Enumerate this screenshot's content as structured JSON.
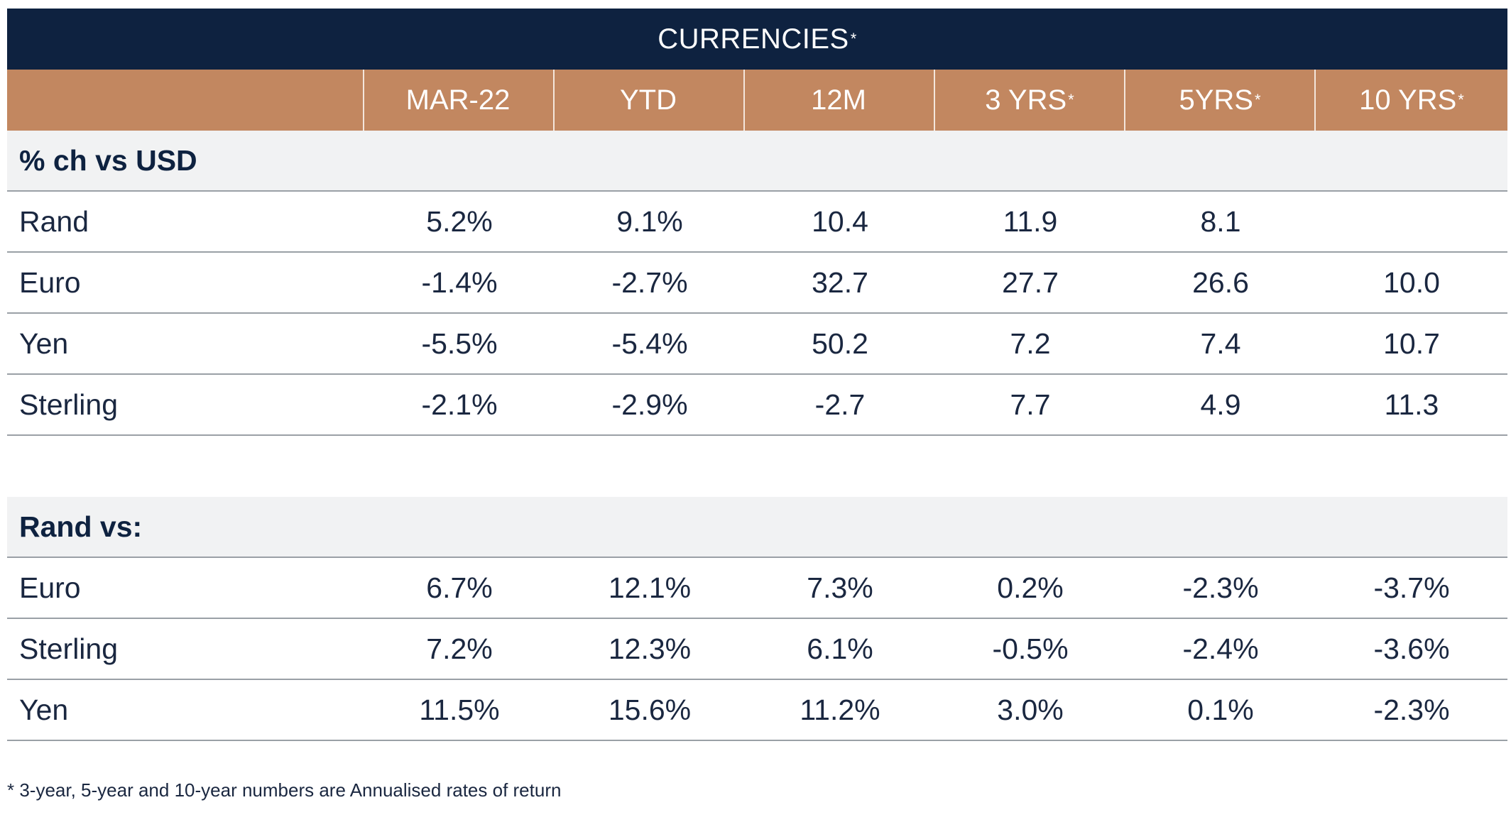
{
  "chart_data": {
    "type": "table",
    "title": "CURRENCIES",
    "title_marker": "*",
    "columns": [
      {
        "label": "MAR-22",
        "marker": ""
      },
      {
        "label": "YTD",
        "marker": ""
      },
      {
        "label": "12M",
        "marker": ""
      },
      {
        "label": "3 YRS",
        "marker": "*"
      },
      {
        "label": "5YRS",
        "marker": " *"
      },
      {
        "label": "10 YRS",
        "marker": "*"
      }
    ],
    "sections": [
      {
        "heading": "% ch vs USD",
        "rows": [
          {
            "label": "Rand",
            "values": [
              "5.2%",
              "9.1%",
              "10.4",
              "11.9",
              "8.1",
              ""
            ]
          },
          {
            "label": "Euro",
            "values": [
              "-1.4%",
              "-2.7%",
              "32.7",
              "27.7",
              "26.6",
              "10.0"
            ]
          },
          {
            "label": "Yen",
            "values": [
              "-5.5%",
              "-5.4%",
              "50.2",
              "7.2",
              "7.4",
              "10.7"
            ]
          },
          {
            "label": "Sterling",
            "values": [
              "-2.1%",
              "-2.9%",
              "-2.7",
              "7.7",
              "4.9",
              "11.3"
            ]
          }
        ]
      },
      {
        "heading": "Rand vs:",
        "rows": [
          {
            "label": "Euro",
            "values": [
              "6.7%",
              "12.1%",
              "7.3%",
              "0.2%",
              "-2.3%",
              "-3.7%"
            ]
          },
          {
            "label": "Sterling",
            "values": [
              "7.2%",
              "12.3%",
              "6.1%",
              "-0.5%",
              "-2.4%",
              "-3.6%"
            ]
          },
          {
            "label": "Yen",
            "values": [
              "11.5%",
              "15.6%",
              "11.2%",
              "3.0%",
              "0.1%",
              "-2.3%"
            ]
          }
        ]
      }
    ],
    "footnote": "* 3-year, 5-year and 10-year numbers are Annualised rates of return"
  },
  "colors": {
    "title_bg": "#0e2240",
    "header_bg": "#c28760",
    "section_bg": "#f1f2f3",
    "text": "#1a2740"
  }
}
